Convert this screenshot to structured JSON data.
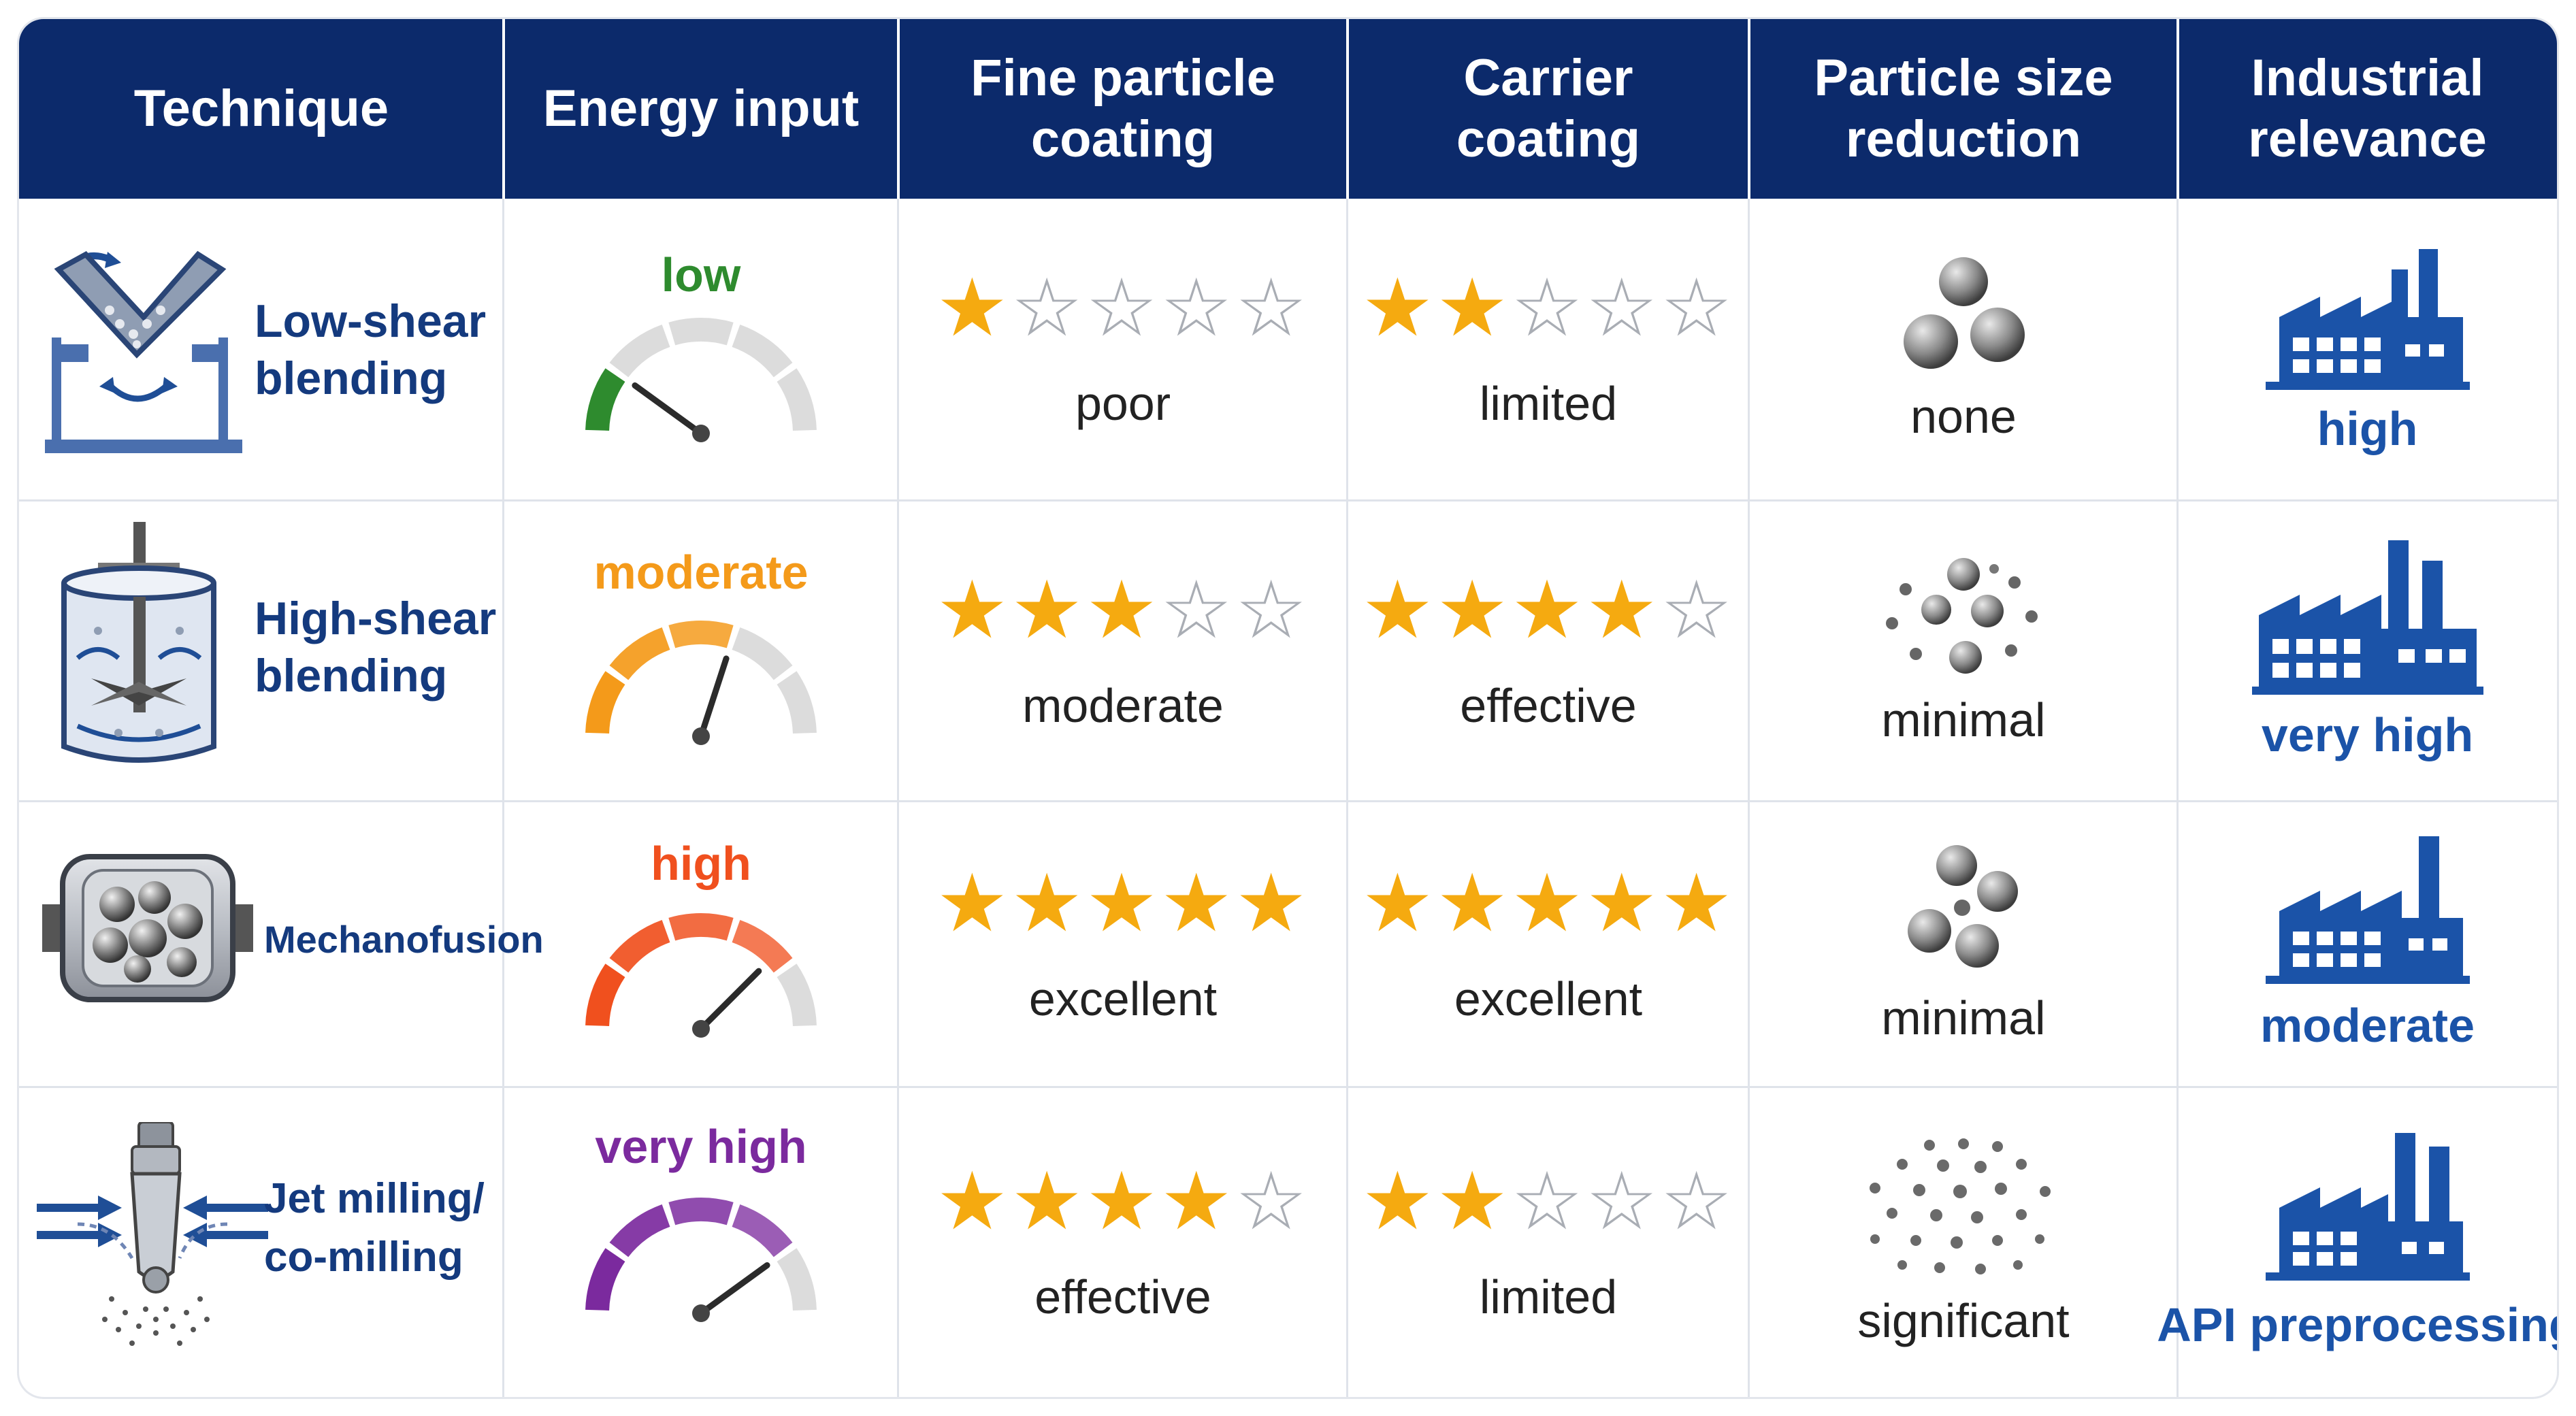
{
  "headers": {
    "technique": "Technique",
    "energy": "Energy input",
    "fine_line1": "Fine particle",
    "fine_line2": "coating",
    "carrier_line1": "Carrier",
    "carrier_line2": "coating",
    "size_line1": "Particle size",
    "size_line2": "reduction",
    "industrial_line1": "Industrial",
    "industrial_line2": "relevance"
  },
  "rows": [
    {
      "technique_line1": "Low-shear",
      "technique_line2": "blending",
      "technique_icon": "v-blender-icon",
      "energy": "low",
      "energy_level": 0.2,
      "energy_color": "#2e8b2e",
      "fine_stars": 1,
      "fine_text": "poor",
      "carrier_stars": 2,
      "carrier_text": "limited",
      "size_text": "none",
      "size_icon": "three-particles-icon",
      "industrial": "high",
      "factory_icon": "factory-icon"
    },
    {
      "technique_line1": "High-shear",
      "technique_line2": "blending",
      "technique_icon": "high-shear-mixer-icon",
      "energy": "moderate",
      "energy_level": 0.6,
      "energy_color": "#f49a1a",
      "fine_stars": 3,
      "fine_text": "moderate",
      "carrier_stars": 4,
      "carrier_text": "effective",
      "size_text": "minimal",
      "size_icon": "scattered-particles-icon",
      "industrial": "very high",
      "factory_icon": "factory-icon"
    },
    {
      "technique_line1": "Mechanofusion",
      "technique_line2": "",
      "technique_icon": "mechanofusion-drum-icon",
      "energy": "high",
      "energy_level": 0.75,
      "energy_color": "#f0501e",
      "fine_stars": 5,
      "fine_text": "excellent",
      "carrier_stars": 5,
      "carrier_text": "excellent",
      "size_text": "minimal",
      "size_icon": "few-particles-icon",
      "industrial": "moderate",
      "factory_icon": "factory-icon"
    },
    {
      "technique_line1": "Jet milling/",
      "technique_line2": "co-milling",
      "technique_icon": "jet-mill-icon",
      "energy": "very high",
      "energy_level": 0.8,
      "energy_color": "#7b2a9e",
      "fine_stars": 4,
      "fine_text": "effective",
      "carrier_stars": 2,
      "carrier_text": "limited",
      "size_text": "significant",
      "size_icon": "many-fine-particles-icon",
      "industrial": "API preprocessing",
      "factory_icon": "factory-icon"
    }
  ],
  "colors": {
    "header_bg": "#0c2a6b",
    "technique_text": "#143a7e",
    "star_full": "#f5aa10",
    "star_empty": "#a9adb4",
    "industrial_text": "#1b53a8",
    "gauge_green": "#2e8b2e",
    "gauge_orange": "#f49a1a",
    "gauge_red": "#f0501e",
    "gauge_purple": "#7b2a9e"
  }
}
